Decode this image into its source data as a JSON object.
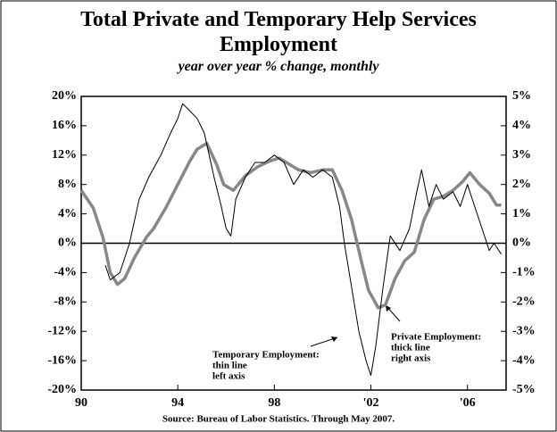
{
  "chart_data": {
    "type": "line",
    "title": "Total Private and Temporary Help Services Employment",
    "subtitle": "year over year % change, monthly",
    "source": "Source: Bureau of Labor Statistics. Through May 2007.",
    "annotations": [
      [
        "Temporary Employment:",
        "thin line",
        "left axis"
      ],
      [
        "Private Employment:",
        "thick line",
        "right axis"
      ]
    ],
    "xlim": [
      1990,
      2007.6
    ],
    "xticks": [
      {
        "value": 1990,
        "label": "90"
      },
      {
        "value": 1994,
        "label": "94"
      },
      {
        "value": 1998,
        "label": "98"
      },
      {
        "value": 2002,
        "label": "'02"
      },
      {
        "value": 2006,
        "label": "'06"
      }
    ],
    "ylim": [
      -20,
      20
    ],
    "yticks": [
      {
        "value": -20,
        "label": "-20%"
      },
      {
        "value": -16,
        "label": "-16%"
      },
      {
        "value": -12,
        "label": "-12%"
      },
      {
        "value": -8,
        "label": "-8%"
      },
      {
        "value": -4,
        "label": "-4%"
      },
      {
        "value": 0,
        "label": "0%"
      },
      {
        "value": 4,
        "label": "4%"
      },
      {
        "value": 8,
        "label": "8%"
      },
      {
        "value": 12,
        "label": "12%"
      },
      {
        "value": 16,
        "label": "16%"
      },
      {
        "value": 20,
        "label": "20%"
      }
    ],
    "y2lim": [
      -5,
      5
    ],
    "y2ticks": [
      {
        "value": -5,
        "label": "-5%"
      },
      {
        "value": -4,
        "label": "-4%"
      },
      {
        "value": -3,
        "label": "-3%"
      },
      {
        "value": -2,
        "label": "-2%"
      },
      {
        "value": -1,
        "label": "-1%"
      },
      {
        "value": 0,
        "label": "0%"
      },
      {
        "value": 1,
        "label": "1%"
      },
      {
        "value": 2,
        "label": "2%"
      },
      {
        "value": 3,
        "label": "3%"
      },
      {
        "value": 4,
        "label": "4%"
      },
      {
        "value": 5,
        "label": "5%"
      }
    ],
    "series": [
      {
        "name": "Temporary Employment",
        "color": "#000000",
        "width": 1,
        "axis": "y",
        "x": [
          1991.0,
          1991.2,
          1991.6,
          1992.0,
          1992.4,
          1992.8,
          1993.3,
          1993.7,
          1994.0,
          1994.2,
          1994.5,
          1994.8,
          1995.1,
          1995.5,
          1995.8,
          1996.0,
          1996.2,
          1996.4,
          1996.8,
          1997.2,
          1997.6,
          1998.0,
          1998.4,
          1998.8,
          1999.2,
          1999.6,
          2000.0,
          2000.4,
          2000.7,
          2000.9,
          2001.2,
          2001.5,
          2001.8,
          2002.0,
          2002.2,
          2002.5,
          2002.8,
          2003.2,
          2003.6,
          2003.9,
          2004.1,
          2004.4,
          2004.7,
          2005.0,
          2005.4,
          2005.7,
          2006.0,
          2006.3,
          2006.6,
          2006.9,
          2007.1,
          2007.4
        ],
        "values": [
          -3,
          -5,
          -4,
          0,
          6,
          9,
          12,
          15,
          17,
          19,
          18,
          17,
          15,
          9,
          5,
          2,
          1,
          6,
          9,
          11,
          11,
          12,
          11,
          8,
          10,
          9,
          10,
          9,
          5,
          0,
          -6,
          -12,
          -16,
          -18,
          -14,
          -6,
          1,
          -1,
          2,
          7,
          10,
          5,
          8,
          6,
          7,
          5,
          8,
          5,
          2,
          -1,
          0,
          -1.5
        ]
      },
      {
        "name": "Private Employment",
        "color": "#888888",
        "width": 3.5,
        "axis": "y2",
        "x": [
          1990.0,
          1990.5,
          1990.9,
          1991.2,
          1991.5,
          1991.8,
          1992.2,
          1992.7,
          1993.0,
          1993.5,
          1994.0,
          1994.5,
          1994.8,
          1995.2,
          1995.6,
          1995.9,
          1996.3,
          1996.8,
          1997.3,
          1997.8,
          1998.2,
          1998.6,
          1999.0,
          1999.5,
          2000.0,
          2000.4,
          2000.8,
          2001.2,
          2001.6,
          2001.9,
          2002.3,
          2002.6,
          2003.0,
          2003.4,
          2003.8,
          2004.2,
          2004.6,
          2005.0,
          2005.4,
          2005.8,
          2006.1,
          2006.5,
          2006.9,
          2007.2,
          2007.4
        ],
        "values": [
          1.8,
          1.2,
          0.2,
          -1.0,
          -1.4,
          -1.2,
          -0.5,
          0.2,
          0.5,
          1.2,
          2.0,
          2.8,
          3.2,
          3.4,
          2.7,
          2.0,
          1.8,
          2.3,
          2.6,
          2.8,
          2.9,
          2.7,
          2.5,
          2.4,
          2.5,
          2.5,
          1.8,
          0.8,
          -0.6,
          -1.6,
          -2.2,
          -2.1,
          -1.2,
          -0.6,
          -0.3,
          0.8,
          1.5,
          1.6,
          1.8,
          2.1,
          2.4,
          2.0,
          1.7,
          1.3,
          1.3
        ]
      }
    ]
  }
}
